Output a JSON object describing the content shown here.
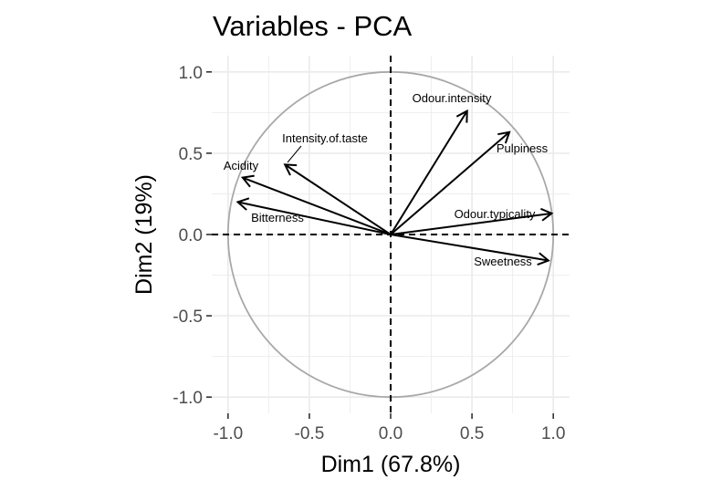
{
  "chart_data": {
    "type": "pca-variables",
    "title": "Variables - PCA",
    "xlabel": "Dim1 (67.8%)",
    "ylabel": "Dim2 (19%)",
    "xlim": [
      -1.1,
      1.1
    ],
    "ylim": [
      -1.1,
      1.1
    ],
    "xticks": [
      -1.0,
      -0.5,
      0.0,
      0.5,
      1.0
    ],
    "yticks": [
      -1.0,
      -0.5,
      0.0,
      0.5,
      1.0
    ],
    "xtick_labels": [
      "-1.0",
      "-0.5",
      "0.0",
      "0.5",
      "1.0"
    ],
    "ytick_labels": [
      "-1.0",
      "-0.5",
      "0.0",
      "0.5",
      "1.0"
    ],
    "grid": true,
    "unit_circle": true,
    "colors": {
      "arrow": "#000000",
      "circle": "#a8a8a8",
      "grid": "#ebebeb"
    },
    "variables": [
      {
        "name": "Odour.intensity",
        "x": 0.47,
        "y": 0.76
      },
      {
        "name": "Pulpiness",
        "x": 0.73,
        "y": 0.63
      },
      {
        "name": "Intensity.of.taste",
        "x": -0.65,
        "y": 0.43
      },
      {
        "name": "Acidity",
        "x": -0.91,
        "y": 0.35
      },
      {
        "name": "Bitterness",
        "x": -0.94,
        "y": 0.2
      },
      {
        "name": "Odour.typicality",
        "x": 0.99,
        "y": 0.13
      },
      {
        "name": "Sweetness",
        "x": 0.97,
        "y": -0.16
      }
    ]
  }
}
